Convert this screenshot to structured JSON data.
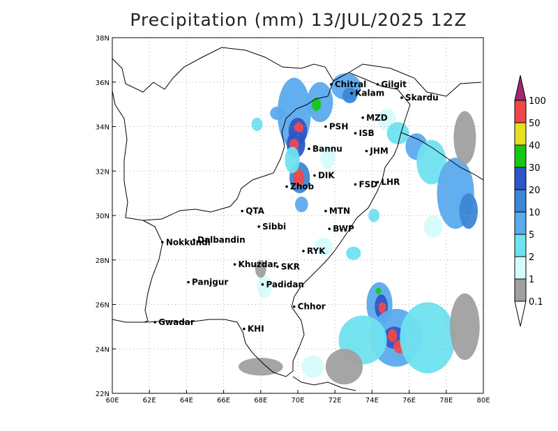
{
  "title": "Precipitation (mm) 13/JUL/2025 12Z",
  "axes": {
    "lon_ticks": [
      "60E",
      "62E",
      "64E",
      "66E",
      "68E",
      "70E",
      "72E",
      "74E",
      "76E",
      "78E",
      "80E"
    ],
    "lat_ticks": [
      "22N",
      "24N",
      "26N",
      "28N",
      "30N",
      "32N",
      "34N",
      "36N",
      "38N"
    ],
    "lon_range": [
      60,
      80
    ],
    "lat_range": [
      22,
      38
    ],
    "grid": true
  },
  "cities": [
    {
      "name": "Chitral",
      "lon": 71.8,
      "lat": 35.9
    },
    {
      "name": "Gilgit",
      "lon": 74.3,
      "lat": 35.9
    },
    {
      "name": "Kalam",
      "lon": 72.9,
      "lat": 35.5
    },
    {
      "name": "Skardu",
      "lon": 75.6,
      "lat": 35.3
    },
    {
      "name": "MZD",
      "lon": 73.5,
      "lat": 34.4
    },
    {
      "name": "PSH",
      "lon": 71.5,
      "lat": 34.0
    },
    {
      "name": "ISB",
      "lon": 73.1,
      "lat": 33.7
    },
    {
      "name": "JHM",
      "lon": 73.7,
      "lat": 32.9
    },
    {
      "name": "Bannu",
      "lon": 70.6,
      "lat": 33.0
    },
    {
      "name": "DIK",
      "lon": 70.9,
      "lat": 31.8
    },
    {
      "name": "FSD",
      "lon": 73.1,
      "lat": 31.4
    },
    {
      "name": "LHR",
      "lon": 74.3,
      "lat": 31.5
    },
    {
      "name": "Zhob",
      "lon": 69.4,
      "lat": 31.3
    },
    {
      "name": "QTA",
      "lon": 67.0,
      "lat": 30.2
    },
    {
      "name": "MTN",
      "lon": 71.5,
      "lat": 30.2
    },
    {
      "name": "Sibbi",
      "lon": 67.9,
      "lat": 29.5
    },
    {
      "name": "BWP",
      "lon": 71.7,
      "lat": 29.4
    },
    {
      "name": "Nokkundi",
      "lon": 62.7,
      "lat": 28.8
    },
    {
      "name": "Dalbandin",
      "lon": 64.4,
      "lat": 28.9
    },
    {
      "name": "RYK",
      "lon": 70.3,
      "lat": 28.4
    },
    {
      "name": "Khuzdar",
      "lon": 66.6,
      "lat": 27.8
    },
    {
      "name": "SKR",
      "lon": 68.9,
      "lat": 27.7
    },
    {
      "name": "Panjgur",
      "lon": 64.1,
      "lat": 27.0
    },
    {
      "name": "Padidan",
      "lon": 68.1,
      "lat": 26.9
    },
    {
      "name": "Chhor",
      "lon": 69.8,
      "lat": 25.9
    },
    {
      "name": "KHI",
      "lon": 67.1,
      "lat": 24.9
    },
    {
      "name": "Gwadar",
      "lon": 62.3,
      "lat": 25.2
    }
  ],
  "colorbar": {
    "levels": [
      "0.1",
      "1",
      "2",
      "5",
      "10",
      "20",
      "30",
      "40",
      "50",
      "100"
    ],
    "colors": [
      "#a0a0a0",
      "#d4fcfc",
      "#6fe2f0",
      "#5aaaee",
      "#3c86d6",
      "#2e56c8",
      "#16c816",
      "#e8e01e",
      "#f04848",
      "#a0286e"
    ]
  }
}
